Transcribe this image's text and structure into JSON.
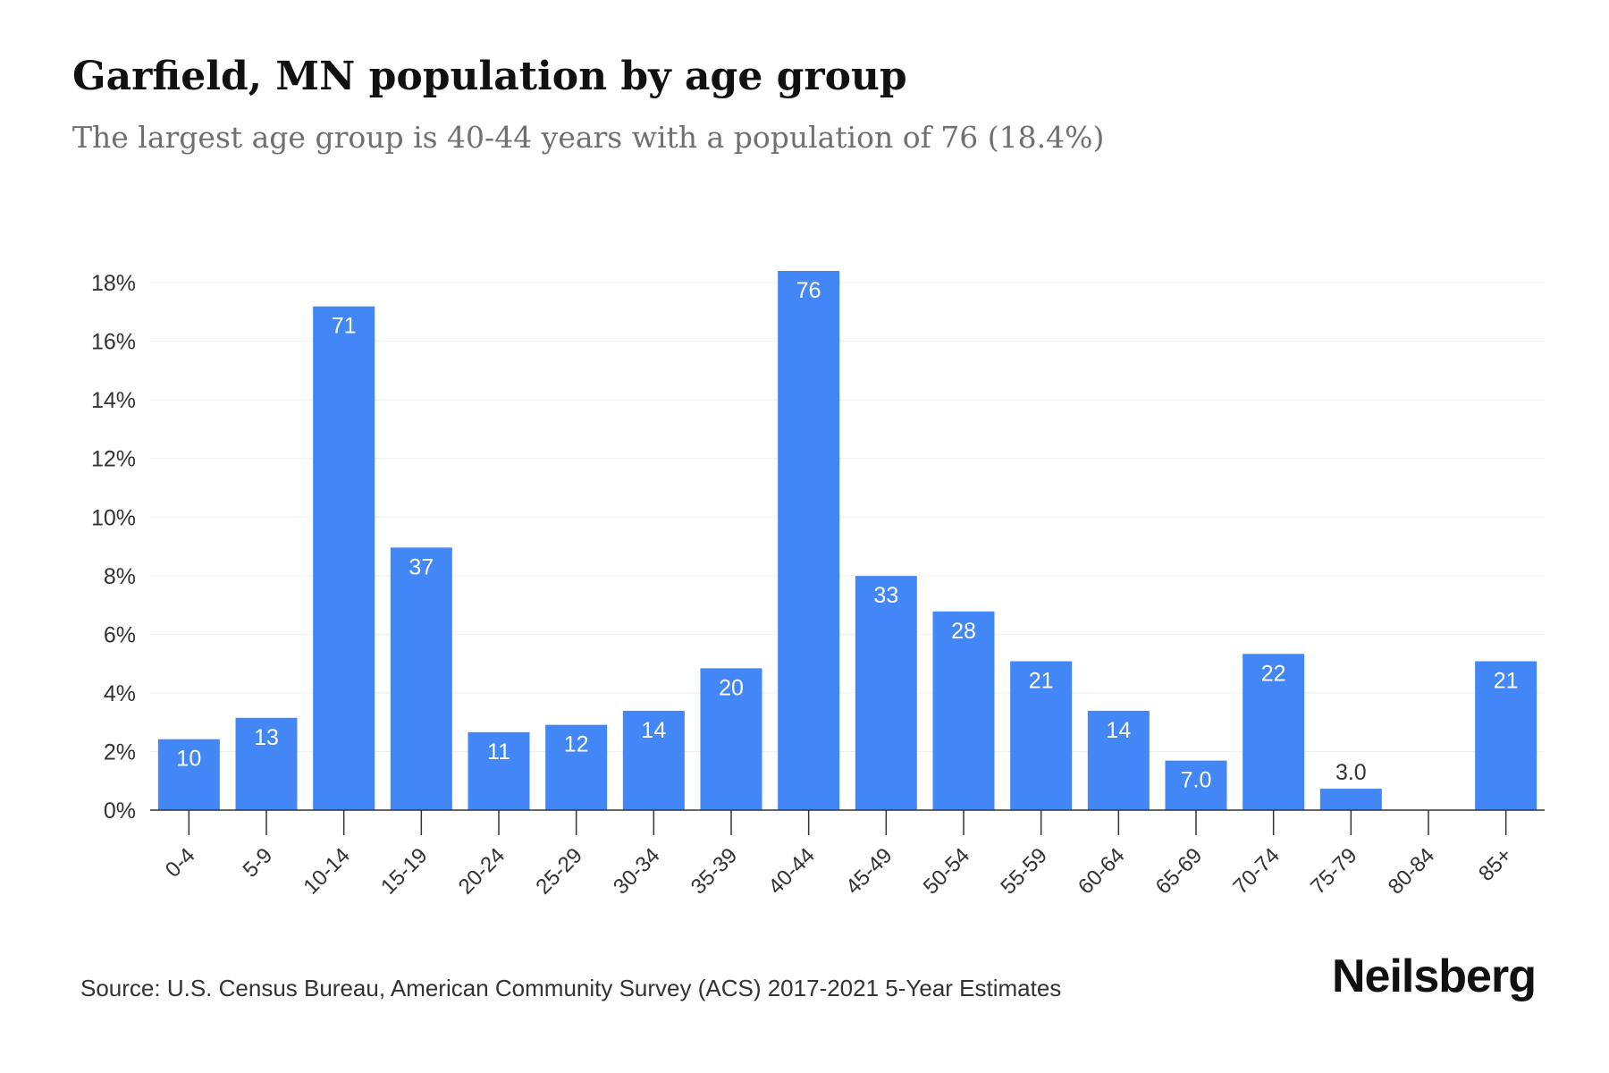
{
  "header": {
    "title": "Garfield, MN population by age group",
    "subtitle": "The largest age group is 40-44 years with a population of 76 (18.4%)"
  },
  "footer": {
    "source": "Source: U.S. Census Bureau, American Community Survey (ACS) 2017-2021 5-Year Estimates",
    "brand": "Neilsberg"
  },
  "colors": {
    "bar": "#4287f5",
    "label_inside": "#ffffff",
    "label_outside": "#333333",
    "grid": "#eeeeee",
    "axis": "#333333"
  },
  "chart_data": {
    "type": "bar",
    "title": "Garfield, MN population by age group",
    "xlabel": "",
    "ylabel": "",
    "categories": [
      "0-4",
      "5-9",
      "10-14",
      "15-19",
      "20-24",
      "25-29",
      "30-34",
      "35-39",
      "40-44",
      "45-49",
      "50-54",
      "55-59",
      "60-64",
      "65-69",
      "70-74",
      "75-79",
      "80-84",
      "85+"
    ],
    "values": [
      2.42,
      3.15,
      17.19,
      8.96,
      2.66,
      2.91,
      3.39,
      4.84,
      18.4,
      7.99,
      6.78,
      5.08,
      3.39,
      1.69,
      5.33,
      0.73,
      0,
      5.08
    ],
    "data_labels": [
      "10",
      "13",
      "71",
      "37",
      "11",
      "12",
      "14",
      "20",
      "76",
      "33",
      "28",
      "21",
      "14",
      "7.0",
      "22",
      "3.0",
      "",
      "21"
    ],
    "y_ticks": [
      0,
      2,
      4,
      6,
      8,
      10,
      12,
      14,
      16,
      18
    ],
    "y_tick_labels": [
      "0%",
      "2%",
      "4%",
      "6%",
      "8%",
      "10%",
      "12%",
      "14%",
      "16%",
      "18%"
    ],
    "ylim": [
      0,
      18.4
    ],
    "grid": true,
    "legend": "none"
  }
}
